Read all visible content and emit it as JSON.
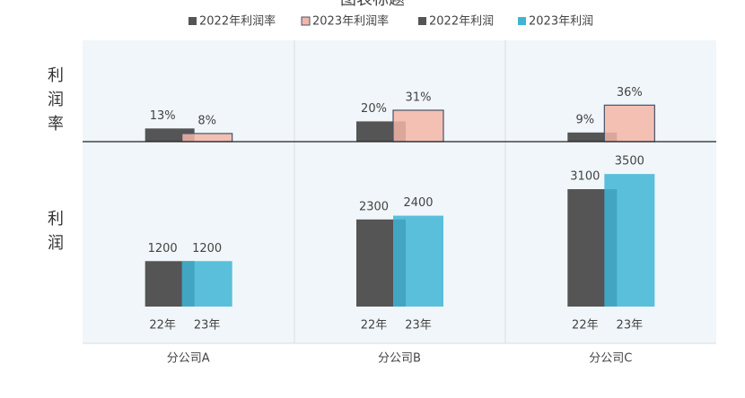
{
  "chart_data": {
    "type": "bar",
    "title": "图表标题",
    "categories": [
      "分公司A",
      "分公司B",
      "分公司C"
    ],
    "bar_labels": [
      "22年",
      "23年"
    ],
    "ylabel": "利润",
    "y2label": "利润率",
    "ylim": [
      0,
      4000
    ],
    "y2lim": [
      0,
      100
    ],
    "series": [
      {
        "name": "2022年利润率",
        "color": "#555555",
        "axis": "y2",
        "values": [
          13,
          20,
          9
        ],
        "value_labels": [
          "13%",
          "20%",
          "9%"
        ]
      },
      {
        "name": "2023年利润率",
        "color": "#f4b6a8",
        "axis": "y2",
        "values": [
          8,
          31,
          36
        ],
        "value_labels": [
          "8%",
          "31%",
          "36%"
        ]
      },
      {
        "name": "2022年利润",
        "color": "#555555",
        "values": [
          1200,
          2300,
          3100
        ]
      },
      {
        "name": "2023年利润",
        "color": "#3fb5d6",
        "values": [
          1200,
          2400,
          3500
        ]
      }
    ]
  }
}
